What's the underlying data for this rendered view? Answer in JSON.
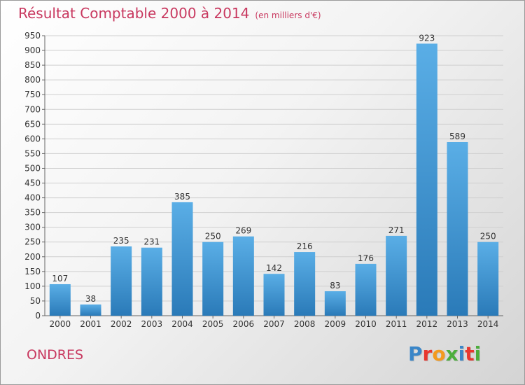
{
  "header": {
    "title": "Résultat Comptable 2000 à 2014",
    "subtitle": "(en milliers d'€)"
  },
  "footer": {
    "city": "ONDRES",
    "logo": "Proxiti"
  },
  "colors": {
    "title": "#c8385f",
    "bar_top": "#5aaee6",
    "bar_bottom": "#2a7ab8",
    "grid": "#cfcfcf"
  },
  "chart_data": {
    "type": "bar",
    "title": "Résultat Comptable 2000 à 2014",
    "categories": [
      "2000",
      "2001",
      "2002",
      "2003",
      "2004",
      "2005",
      "2006",
      "2007",
      "2008",
      "2009",
      "2010",
      "2011",
      "2012",
      "2013",
      "2014"
    ],
    "values": [
      107,
      38,
      235,
      231,
      385,
      250,
      269,
      142,
      216,
      83,
      176,
      271,
      923,
      589,
      250
    ],
    "ylim": [
      0,
      950
    ],
    "yticks": [
      0,
      50,
      100,
      150,
      200,
      250,
      300,
      350,
      400,
      450,
      500,
      550,
      600,
      650,
      700,
      750,
      800,
      850,
      900,
      950
    ],
    "grid": true
  }
}
